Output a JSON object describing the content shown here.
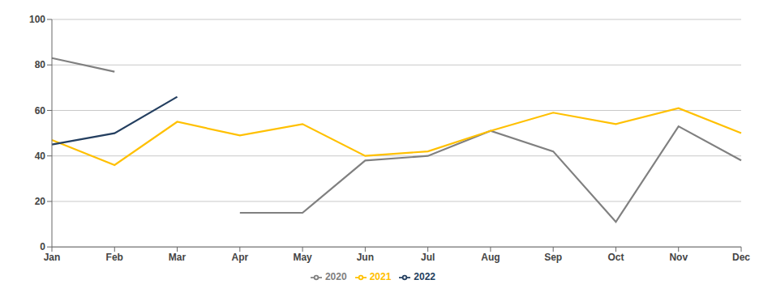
{
  "chart_data": {
    "type": "line",
    "categories": [
      "Jan",
      "Feb",
      "Mar",
      "Apr",
      "May",
      "Jun",
      "Jul",
      "Aug",
      "Sep",
      "Oct",
      "Nov",
      "Dec"
    ],
    "series": [
      {
        "name": "2020",
        "color": "#808080",
        "values": [
          83,
          77,
          null,
          15,
          15,
          38,
          40,
          51,
          42,
          11,
          53,
          38
        ]
      },
      {
        "name": "2021",
        "color": "#FFC000",
        "values": [
          47,
          36,
          55,
          49,
          54,
          40,
          42,
          51,
          59,
          54,
          61,
          50
        ]
      },
      {
        "name": "2022",
        "color": "#243F60",
        "values": [
          45,
          50,
          66,
          null,
          null,
          null,
          null,
          null,
          null,
          null,
          null,
          null
        ]
      }
    ],
    "ylim": [
      0,
      100
    ],
    "yticks": [
      0,
      20,
      40,
      60,
      80,
      100
    ],
    "grid": true,
    "legend": "bottom"
  }
}
